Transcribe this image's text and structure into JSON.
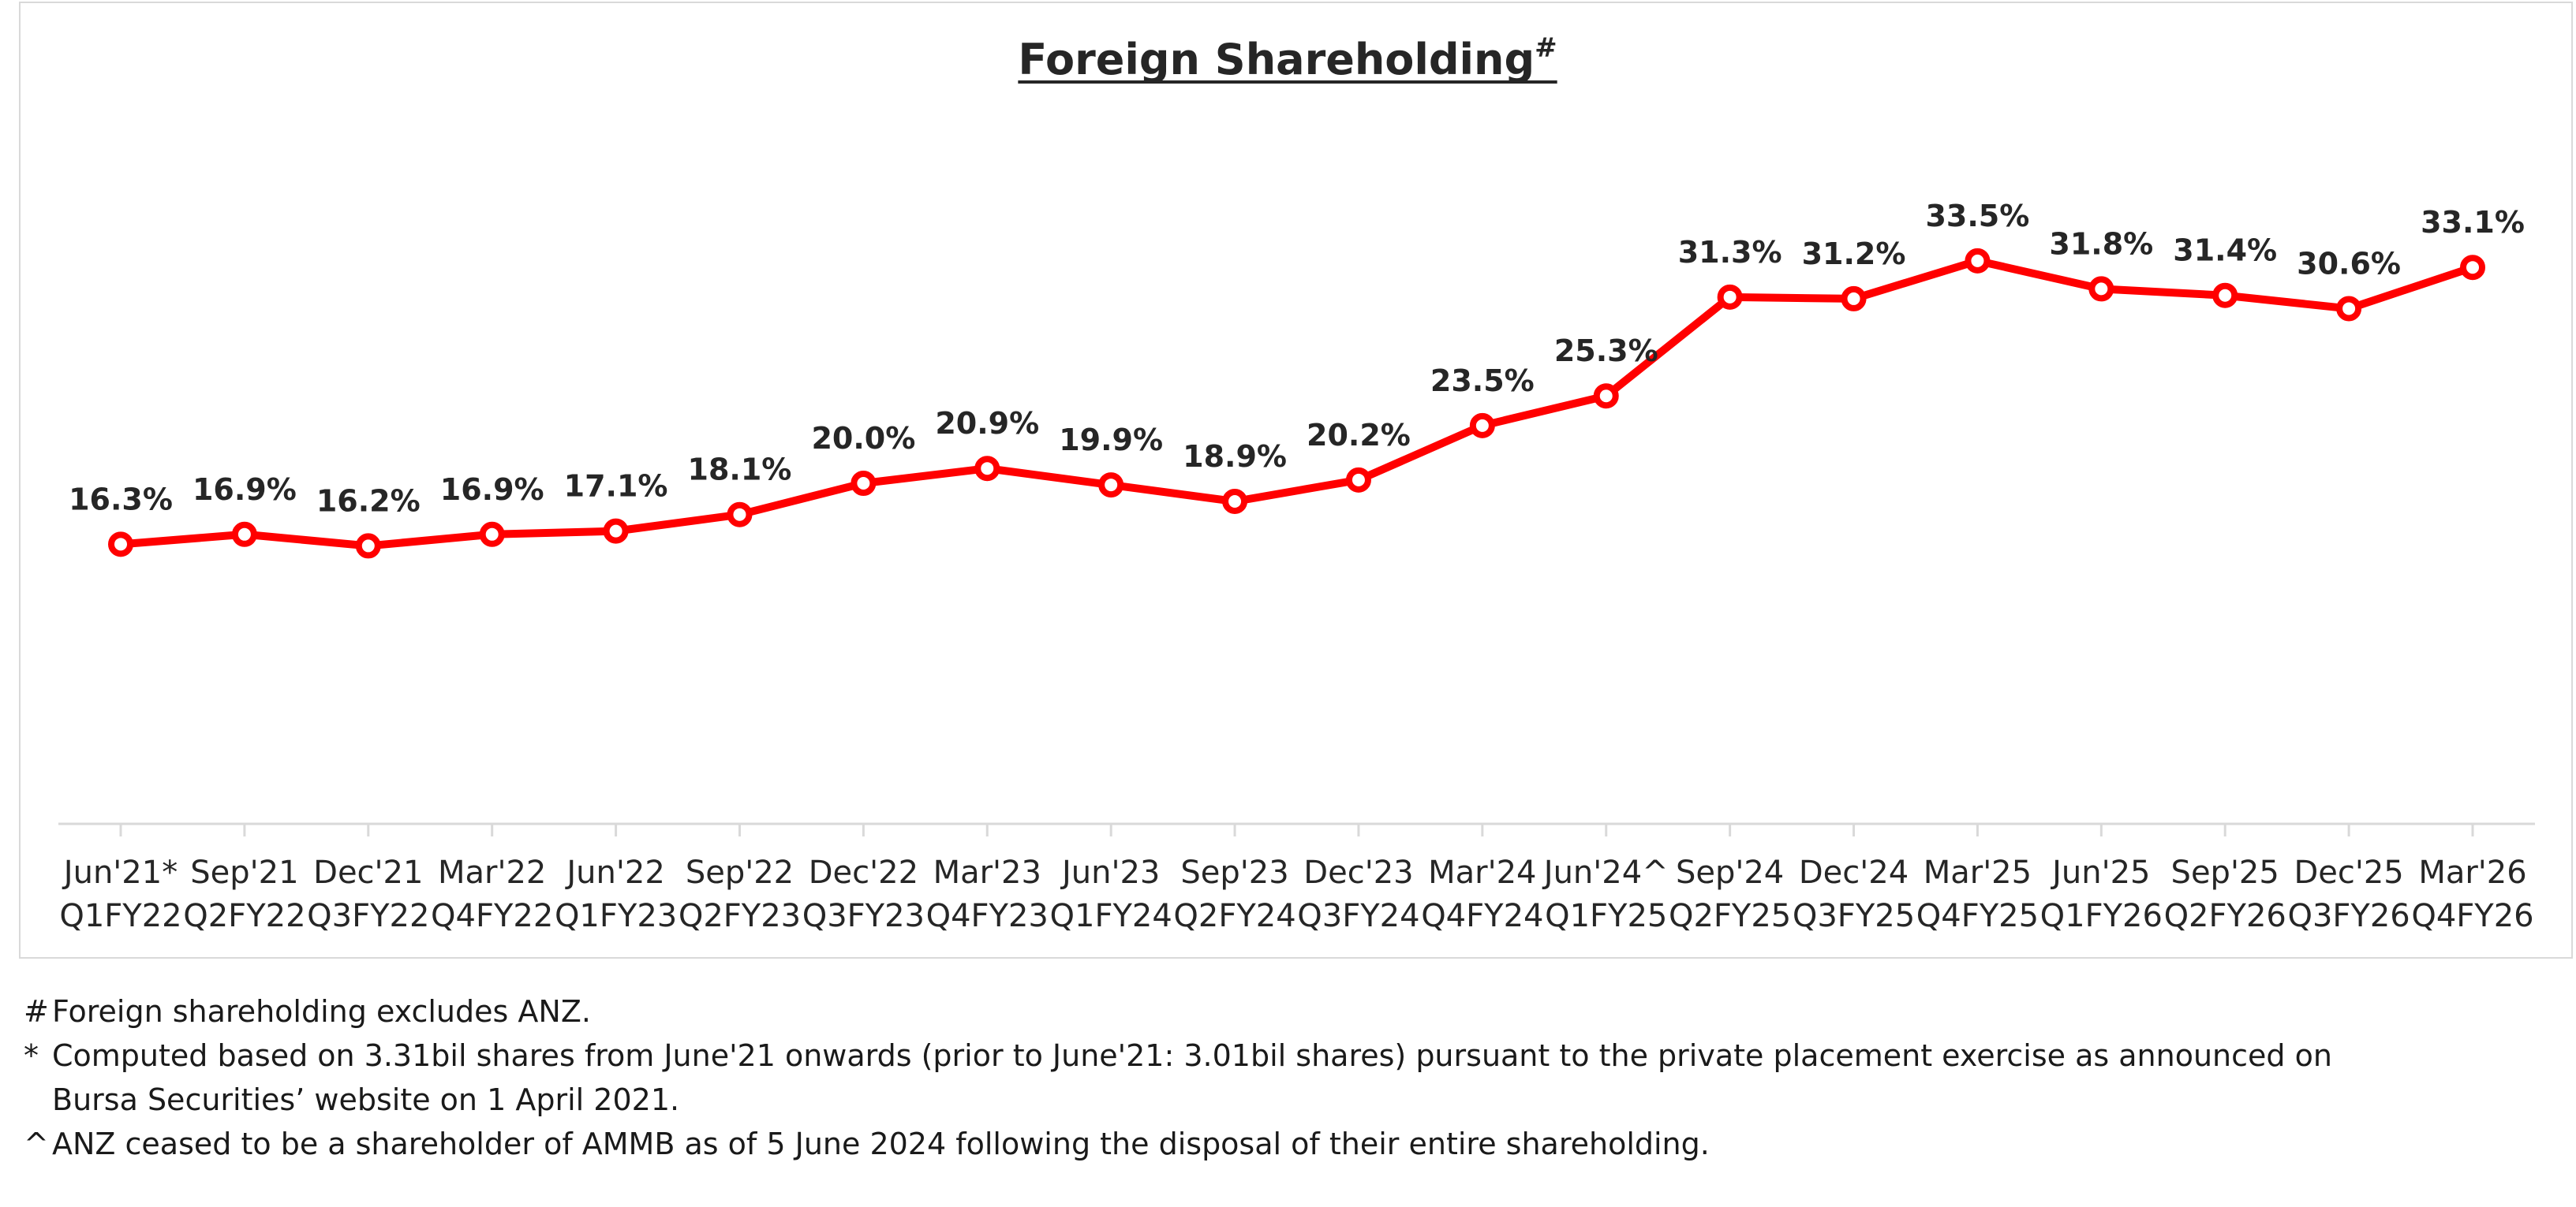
{
  "chart_data": {
    "type": "line",
    "title": "Foreign Shareholding",
    "title_superscript": "#",
    "categories": [
      [
        "Jun'21*",
        "Q1FY22"
      ],
      [
        "Sep'21",
        "Q2FY22"
      ],
      [
        "Dec'21",
        "Q3FY22"
      ],
      [
        "Mar'22",
        "Q4FY22"
      ],
      [
        "Jun'22",
        "Q1FY23"
      ],
      [
        "Sep'22",
        "Q2FY23"
      ],
      [
        "Dec'22",
        "Q3FY23"
      ],
      [
        "Mar'23",
        "Q4FY23"
      ],
      [
        "Jun'23",
        "Q1FY24"
      ],
      [
        "Sep'23",
        "Q2FY24"
      ],
      [
        "Dec'23",
        "Q3FY24"
      ],
      [
        "Mar'24",
        "Q4FY24"
      ],
      [
        "Jun'24^",
        "Q1FY25"
      ],
      [
        "Sep'24",
        "Q2FY25"
      ],
      [
        "Dec'24",
        "Q3FY25"
      ],
      [
        "Mar'25",
        "Q4FY25"
      ],
      [
        "Jun'25",
        "Q1FY26"
      ],
      [
        "Sep'25",
        "Q2FY26"
      ],
      [
        "Dec'25",
        "Q3FY26"
      ],
      [
        "Mar'26",
        "Q4FY26"
      ]
    ],
    "series": [
      {
        "name": "Foreign Shareholding",
        "values": [
          16.3,
          16.9,
          16.2,
          16.9,
          17.1,
          18.1,
          20.0,
          20.9,
          19.9,
          18.9,
          20.2,
          23.5,
          25.3,
          31.3,
          31.2,
          33.5,
          31.8,
          31.4,
          30.6,
          33.1
        ],
        "labels": [
          "16.3%",
          "16.9%",
          "16.2%",
          "16.9%",
          "17.1%",
          "18.1%",
          "20.0%",
          "20.9%",
          "19.9%",
          "18.9%",
          "20.2%",
          "23.5%",
          "25.3%",
          "31.3%",
          "31.2%",
          "33.5%",
          "31.8%",
          "31.4%",
          "30.6%",
          "33.1%"
        ],
        "color": "#ff0000"
      }
    ],
    "xlabel": "",
    "ylabel": "",
    "ylim": [
      0,
      40
    ],
    "grid": false,
    "legend": "none"
  },
  "footnotes": [
    {
      "mark": "#",
      "lines": [
        "Foreign shareholding excludes ANZ."
      ]
    },
    {
      "mark": "*",
      "lines": [
        "Computed based on 3.31bil shares from June'21 onwards (prior to June'21: 3.01bil shares) pursuant to the private placement exercise as announced on",
        "Bursa Securities’ website on 1 April 2021."
      ]
    },
    {
      "mark": "^",
      "lines": [
        "ANZ ceased to be a shareholder of AMMB as of 5 June 2024 following the disposal of their entire shareholding."
      ]
    }
  ],
  "colors": {
    "line": "#ff0000",
    "marker_fill": "#ffffff",
    "axis": "#d9d9d9",
    "text": "#262626"
  }
}
